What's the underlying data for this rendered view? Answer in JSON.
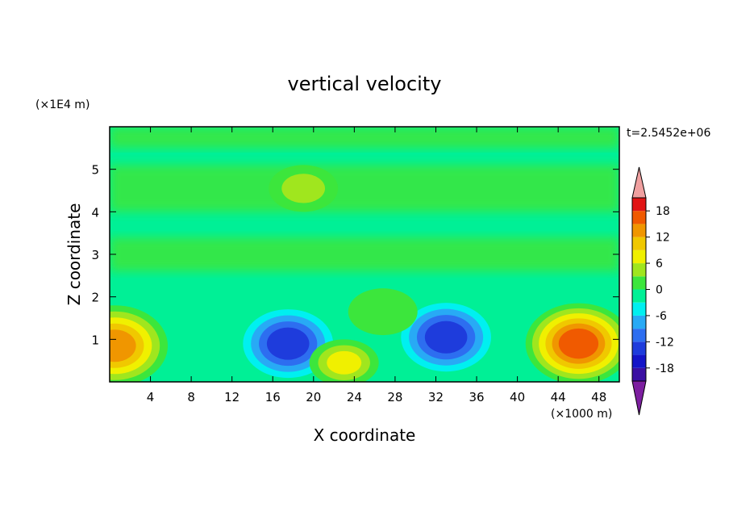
{
  "chart_data": {
    "type": "heatmap",
    "title": "vertical velocity",
    "xlabel": "X coordinate",
    "ylabel": "Z coordinate",
    "x_unit": "(×1000 m)",
    "y_unit": "(×1E4 m)",
    "time_label": "t=2.5452e+06",
    "xlim": [
      0,
      50
    ],
    "ylim": [
      0,
      6
    ],
    "x_ticks": [
      4,
      8,
      12,
      16,
      20,
      24,
      28,
      32,
      36,
      40,
      44,
      48
    ],
    "y_ticks": [
      1,
      2,
      3,
      4,
      5
    ],
    "colorbar": {
      "levels": [
        -21,
        -18,
        -15,
        -12,
        -9,
        -6,
        -3,
        0,
        3,
        6,
        9,
        12,
        15,
        18,
        21
      ],
      "tick_labels": [
        "18",
        "12",
        "6",
        "0",
        "-6",
        "-12",
        "-18"
      ],
      "tick_values": [
        18,
        12,
        6,
        0,
        -6,
        -12,
        -18
      ],
      "colors": [
        "#7d1fa0",
        "#3a0fa3",
        "#1414c8",
        "#1e3cdc",
        "#2d6ef0",
        "#28aaf5",
        "#00f0f0",
        "#00f096",
        "#3ce63c",
        "#a0e61e",
        "#f0f000",
        "#f0c800",
        "#f09600",
        "#f05a00",
        "#e11414",
        "#f0a0a0"
      ],
      "extend": "both"
    },
    "features": [
      {
        "kind": "updraft",
        "x": 0.5,
        "z": 0.85,
        "w": 14
      },
      {
        "kind": "downdraft",
        "x": 17.5,
        "z": 0.9,
        "w": -14
      },
      {
        "kind": "updraft",
        "x": 23,
        "z": 0.45,
        "w": 9
      },
      {
        "kind": "downdraft",
        "x": 33,
        "z": 1.05,
        "w": -13
      },
      {
        "kind": "updraft",
        "x": 46,
        "z": 0.9,
        "w": 17
      },
      {
        "kind": "updraft",
        "x": 19,
        "z": 4.55,
        "w": 4
      },
      {
        "kind": "updraft",
        "x": 26.8,
        "z": 1.65,
        "w": 3
      }
    ]
  }
}
